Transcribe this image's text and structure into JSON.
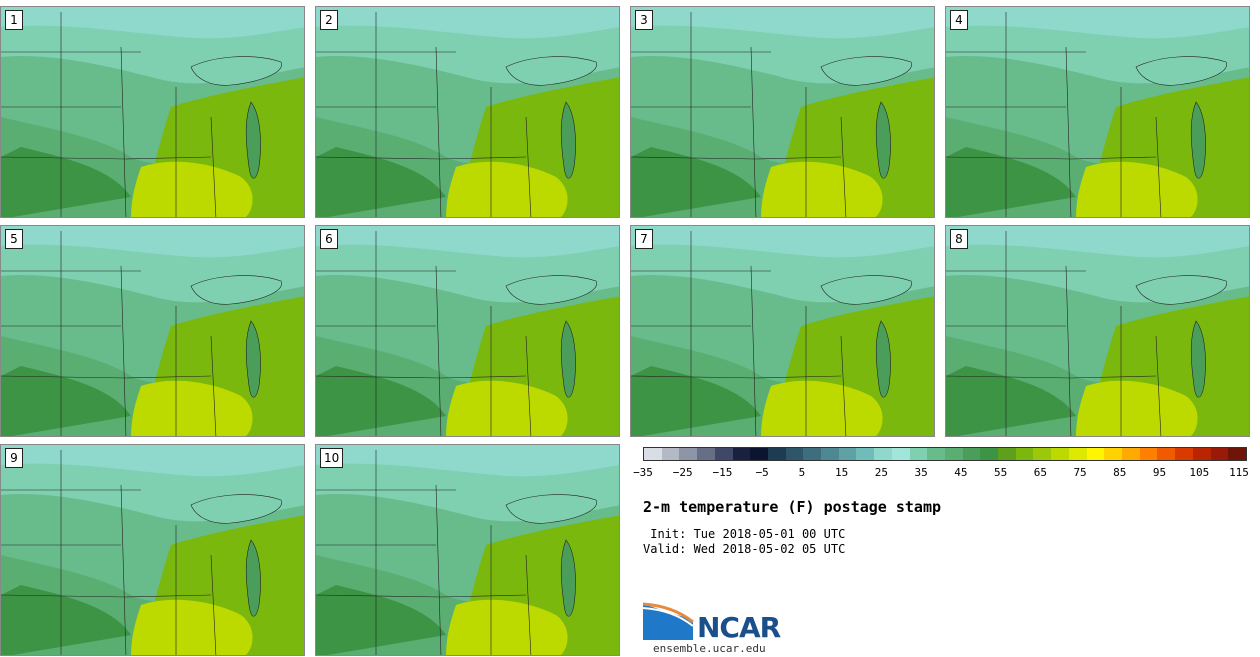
{
  "title": "2-m temperature (F) postage stamp",
  "init": " Init: Tue 2018-05-01 00 UTC",
  "valid": "Valid: Wed 2018-05-02 05 UTC",
  "site": "ensemble.ucar.edu",
  "logo_text": "NCAR",
  "members": [
    "1",
    "2",
    "3",
    "4",
    "5",
    "6",
    "7",
    "8",
    "9",
    "10"
  ],
  "colorbar": {
    "ticks": [
      "−35",
      "−25",
      "−15",
      "−5",
      "5",
      "15",
      "25",
      "35",
      "45",
      "55",
      "65",
      "75",
      "85",
      "95",
      "105",
      "115"
    ],
    "colors": [
      "#d8dde6",
      "#b3bac6",
      "#8d95a6",
      "#666f86",
      "#3f4866",
      "#1b2040",
      "#0b1530",
      "#1d3c52",
      "#2e5568",
      "#3e6e7e",
      "#4e8892",
      "#5ea2a6",
      "#6fbcb8",
      "#8fd9cc",
      "#a2e6da",
      "#7ed0b0",
      "#68bc8c",
      "#5aae72",
      "#4a9e5a",
      "#3d9445",
      "#5ea01c",
      "#7ab80e",
      "#9cc80a",
      "#bdda00",
      "#dee800",
      "#fff500",
      "#ffd200",
      "#ffaa00",
      "#ff8000",
      "#f05a00",
      "#d83a00",
      "#b82500",
      "#9a1a0a",
      "#6e1408"
    ]
  }
}
